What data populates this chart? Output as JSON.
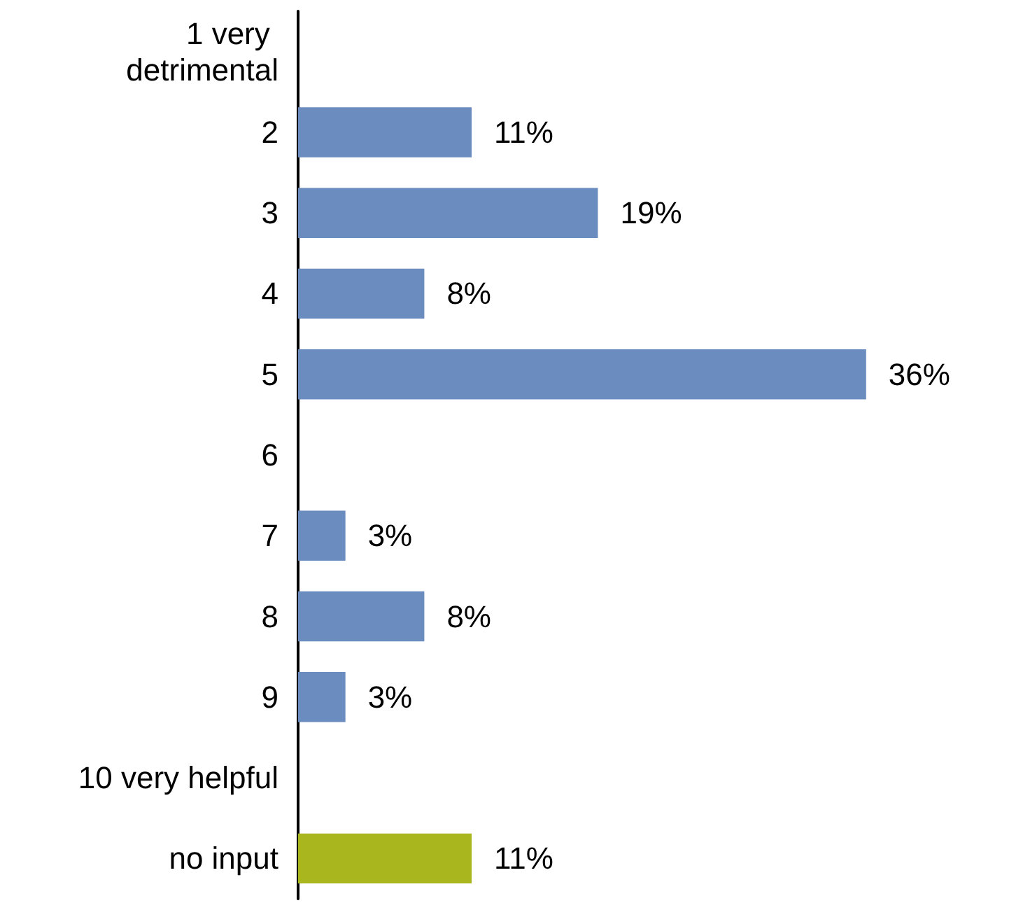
{
  "chart_data": {
    "type": "bar",
    "orientation": "horizontal",
    "categories": [
      "1 very detrimental",
      "2",
      "3",
      "4",
      "5",
      "6",
      "7",
      "8",
      "9",
      "10 very helpful",
      "no input"
    ],
    "values": [
      null,
      11,
      19,
      8,
      36,
      null,
      3,
      8,
      3,
      null,
      11
    ],
    "value_labels": [
      null,
      "11%",
      "19%",
      "8%",
      "36%",
      null,
      "3%",
      "8%",
      "3%",
      null,
      "11%"
    ],
    "colors": [
      "#6b8cbf",
      "#6b8cbf",
      "#6b8cbf",
      "#6b8cbf",
      "#6b8cbf",
      "#6b8cbf",
      "#6b8cbf",
      "#6b8cbf",
      "#6b8cbf",
      "#6b8cbf",
      "#aab61e"
    ]
  }
}
